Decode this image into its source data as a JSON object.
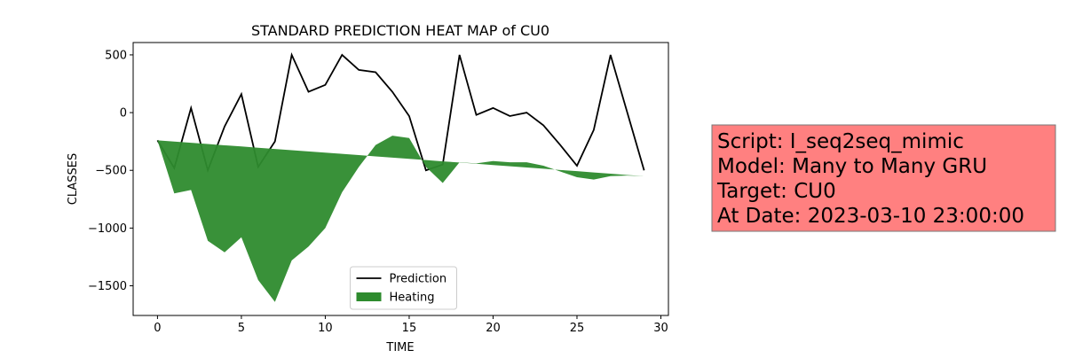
{
  "chart_data": {
    "type": "line_area",
    "title": "STANDARD PREDICTION HEAT MAP of CU0",
    "xlabel": "TIME",
    "ylabel": "CLASSES",
    "x": [
      0,
      1,
      2,
      3,
      4,
      5,
      6,
      7,
      8,
      9,
      10,
      11,
      12,
      13,
      14,
      15,
      16,
      17,
      18,
      19,
      20,
      21,
      22,
      23,
      24,
      25,
      26,
      27,
      28,
      29
    ],
    "series": [
      {
        "name": "Prediction",
        "kind": "line",
        "color": "#000000",
        "values": [
          -240,
          -480,
          40,
          -500,
          -120,
          160,
          -470,
          -250,
          500,
          180,
          240,
          500,
          370,
          350,
          180,
          -30,
          -500,
          -450,
          500,
          -20,
          40,
          -30,
          0,
          -110,
          -280,
          -460,
          -150,
          500,
          0,
          -500
        ]
      },
      {
        "name": "Heating",
        "kind": "area",
        "color": "#2e8b2e",
        "values": [
          -240,
          -700,
          -670,
          -1110,
          -1210,
          -1080,
          -1450,
          -1640,
          -1280,
          -1160,
          -1000,
          -690,
          -470,
          -280,
          -200,
          -220,
          -470,
          -610,
          -430,
          -440,
          -420,
          -430,
          -430,
          -460,
          -510,
          -560,
          -580,
          -550,
          -545,
          -550
        ],
        "base": [
          -240,
          -251,
          -261,
          -272,
          -283,
          -293,
          -304,
          -315,
          -326,
          -336,
          -347,
          -357,
          -368,
          -379,
          -390,
          -400,
          -411,
          -422,
          -432,
          -443,
          -454,
          -465,
          -475,
          -486,
          -497,
          -507,
          -518,
          -529,
          -540,
          -550
        ]
      }
    ],
    "xlim": [
      -1.45,
      30.45
    ],
    "ylim": [
      -1757,
      607
    ],
    "xticks": [
      0,
      5,
      10,
      15,
      20,
      25,
      30
    ],
    "yticks": [
      {
        "value": -1500,
        "label": "−1500"
      },
      {
        "value": -1000,
        "label": "−1000"
      },
      {
        "value": -500,
        "label": "−500"
      },
      0,
      500
    ],
    "legend": "lower center",
    "annotation": {
      "lines": [
        "Script: I_seq2seq_mimic",
        "Model: Many to Many GRU",
        "Target: CU0",
        "At Date: 2023-03-10 23:00:00"
      ],
      "color": "#ff8080"
    }
  }
}
